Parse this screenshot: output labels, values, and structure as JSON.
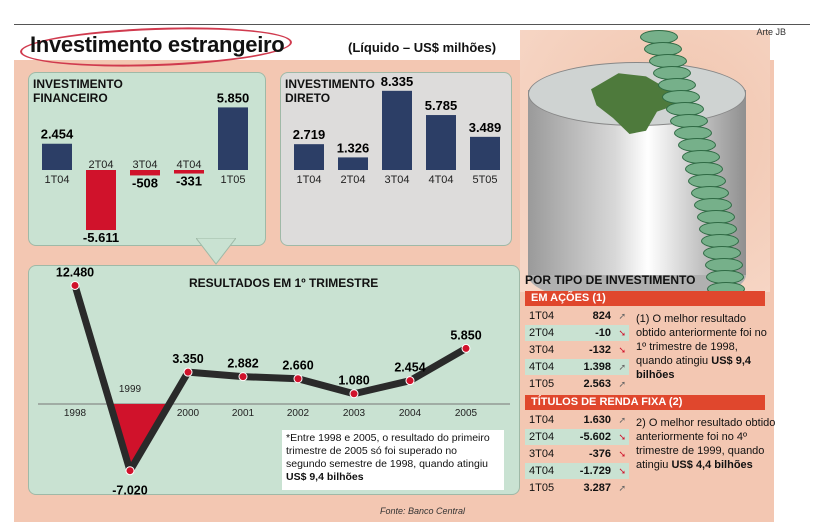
{
  "header": {
    "arte": "Arte JB",
    "title": "Investimento estrangeiro",
    "subtitle": "(Líquido – US$ milhões)"
  },
  "colors": {
    "positive_bar": "#2c3e66",
    "negative_bar": "#d0122b",
    "line": "#2a2a2a",
    "point": "#d0122b",
    "header_bar": "#e0472d"
  },
  "chart_data": [
    {
      "type": "bar",
      "title": "INVESTIMENTO FINANCEIRO",
      "categories": [
        "1T04",
        "2T04",
        "3T04",
        "4T04",
        "1T05"
      ],
      "values": [
        2454,
        -5611,
        -508,
        -331,
        5850
      ],
      "value_labels": [
        "2.454",
        "-5.611",
        "-508",
        "-331",
        "5.850"
      ]
    },
    {
      "type": "bar",
      "title": "INVESTIMENTO DIRETO",
      "categories": [
        "1T04",
        "2T04",
        "3T04",
        "4T04",
        "5T05"
      ],
      "values": [
        2719,
        1326,
        8335,
        5785,
        3489
      ],
      "value_labels": [
        "2.719",
        "1.326",
        "8.335",
        "5.785",
        "3.489"
      ]
    },
    {
      "type": "line",
      "title": "RESULTADOS EM 1º TRIMESTRE",
      "x": [
        "1998",
        "1999",
        "2000",
        "2001",
        "2002",
        "2003",
        "2004",
        "2005"
      ],
      "values": [
        12480,
        -7020,
        3350,
        2882,
        2660,
        1080,
        2454,
        5850
      ],
      "value_labels": [
        "12.480",
        "-7.020",
        "3.350",
        "2.882",
        "2.660",
        "1.080",
        "2.454",
        "5.850"
      ]
    }
  ],
  "nota_resultados": {
    "text": "*Entre 1998 e 2005, o resultado do primeiro trimestre de 2005 só foi superado no segundo semestre de 1998, quando atingiu",
    "bold": "US$ 9,4 bilhões"
  },
  "fonte": "Fonte: Banco Central",
  "por_tipo": {
    "title": "POR TIPO DE INVESTIMENTO",
    "acoes": {
      "header": "EM AÇÕES (1)",
      "rows": [
        {
          "period": "1T04",
          "value": "824",
          "dir": "up"
        },
        {
          "period": "2T04",
          "value": "-10",
          "dir": "down"
        },
        {
          "period": "3T04",
          "value": "-132",
          "dir": "down"
        },
        {
          "period": "4T04",
          "value": "1.398",
          "dir": "up"
        },
        {
          "period": "1T05",
          "value": "2.563",
          "dir": "up"
        }
      ],
      "note": "(1) O melhor resultado obtido anteriormente foi no 1º trimestre de 1998, quando atingiu",
      "note_bold": "US$ 9,4 bilhões"
    },
    "renda_fixa": {
      "header": "TÍTULOS DE RENDA FIXA (2)",
      "rows": [
        {
          "period": "1T04",
          "value": "1.630",
          "dir": "up"
        },
        {
          "period": "2T04",
          "value": "-5.602",
          "dir": "down"
        },
        {
          "period": "3T04",
          "value": "-376",
          "dir": "down"
        },
        {
          "period": "4T04",
          "value": "-1.729",
          "dir": "down"
        },
        {
          "period": "1T05",
          "value": "3.287",
          "dir": "up"
        }
      ],
      "note": "2) O melhor resultado obtido anteriormente foi no 4º trimestre de 1999, quando atingiu",
      "note_bold": "US$ 4,4 bilhões"
    }
  }
}
